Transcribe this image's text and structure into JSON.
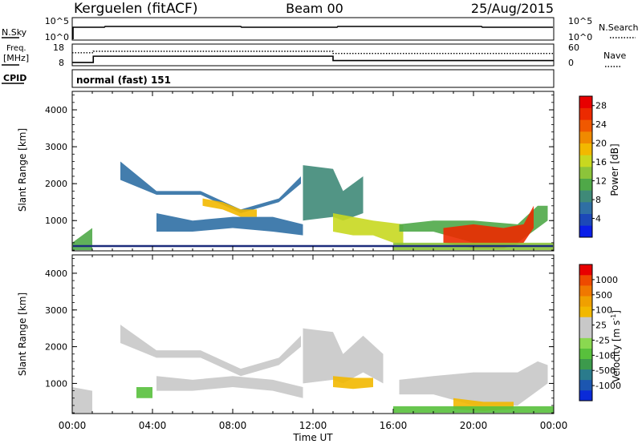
{
  "header": {
    "site": "Kerguelen (fitACF)",
    "beam": "Beam 00",
    "date": "25/Aug/2015"
  },
  "status_panels": {
    "nsky": {
      "label": "N.Sky",
      "ticks": [
        "10^5",
        "10^0"
      ]
    },
    "nsearch": {
      "label": "N.Search",
      "ticks": [
        "10^5",
        "10^0"
      ]
    },
    "freq": {
      "label_top": "Freq.",
      "label_unit": "[MHz]",
      "ticks": [
        "18",
        "8"
      ]
    },
    "nave": {
      "label": "Nave",
      "ticks": [
        "60",
        "0"
      ]
    },
    "cpid": {
      "label": "CPID",
      "value": "normal (fast) 151"
    },
    "freq_series": {
      "x_hours": [
        0,
        1.05,
        1.05,
        13.0,
        13.0,
        24
      ],
      "y_mhz": [
        9.5,
        9.5,
        12.4,
        12.4,
        10.4,
        10.4
      ]
    },
    "nave_series": {
      "x_hours": [
        0,
        1.05,
        1.05,
        13.0,
        13.0,
        24
      ],
      "y": [
        36,
        36,
        40,
        40,
        34,
        34
      ]
    }
  },
  "chart_data": [
    {
      "type": "heatmap",
      "name": "power",
      "xlabel": "",
      "ylabel": "Slant Range [km]",
      "x_unit": "hours UT",
      "xlim": [
        0,
        24
      ],
      "ylim": [
        180,
        4500
      ],
      "yticks": [
        "1000",
        "2000",
        "3000",
        "4000"
      ],
      "colorbar": {
        "label": "Power [dB]",
        "ticks": [
          "4",
          "8",
          "12",
          "16",
          "20",
          "24",
          "28"
        ],
        "range": [
          0,
          30
        ],
        "colors": [
          "#0a1ee8",
          "#1c48b8",
          "#2f6fa4",
          "#3f8a78",
          "#4fa848",
          "#8cc43a",
          "#c8d820",
          "#f2b800",
          "#f08a00",
          "#f05800",
          "#ec2a00",
          "#e80000"
        ]
      },
      "bands": [
        {
          "x": [
            0.0,
            1.0
          ],
          "y0": [
            400,
            800
          ],
          "y1": [
            200,
            200
          ],
          "v": 10
        },
        {
          "x": [
            2.4,
            4.2,
            6.4,
            8.4,
            10.3,
            11.4
          ],
          "y0": [
            2600,
            1800,
            1800,
            1300,
            1600,
            2200
          ],
          "y1": [
            2100,
            1700,
            1700,
            1200,
            1500,
            2000
          ],
          "v": 7
        },
        {
          "x": [
            6.5,
            7.5,
            8.4,
            9.2
          ],
          "y0": [
            1600,
            1500,
            1300,
            1300
          ],
          "y1": [
            1400,
            1300,
            1100,
            1100
          ],
          "v": 19
        },
        {
          "x": [
            4.2,
            6.0,
            8.0,
            10.0,
            11.5
          ],
          "y0": [
            1200,
            1000,
            1100,
            1100,
            900
          ],
          "y1": [
            700,
            700,
            800,
            700,
            600
          ],
          "v": 6
        },
        {
          "x": [
            11.5,
            13.0,
            13.5,
            14.5
          ],
          "y0": [
            2500,
            2400,
            1800,
            2200
          ],
          "y1": [
            1000,
            1100,
            1000,
            1200
          ],
          "v": 9
        },
        {
          "x": [
            13.0,
            14.0,
            15.0,
            16.5
          ],
          "y0": [
            1200,
            1100,
            1000,
            900
          ],
          "y1": [
            700,
            600,
            600,
            300
          ],
          "v": 17
        },
        {
          "x": [
            16.3,
            18.0,
            20.0,
            22.2,
            23.2,
            23.7
          ],
          "y0": [
            900,
            1000,
            1000,
            900,
            1400,
            1400
          ],
          "y1": [
            700,
            700,
            400,
            400,
            800,
            1000
          ],
          "v": 10
        },
        {
          "x": [
            18.5,
            20.0,
            21.5,
            22.5,
            23.0
          ],
          "y0": [
            800,
            900,
            800,
            900,
            1400
          ],
          "y1": [
            400,
            250,
            250,
            400,
            800
          ],
          "v": 27
        },
        {
          "x": [
            16.0,
            24.0
          ],
          "y0": [
            400,
            400
          ],
          "y1": [
            200,
            200
          ],
          "v": 14
        }
      ]
    },
    {
      "type": "heatmap",
      "name": "velocity",
      "xlabel": "Time UT",
      "ylabel": "Slant Range [km]",
      "x_unit": "hours UT",
      "xlim": [
        0,
        24
      ],
      "xticks": [
        "00:00",
        "04:00",
        "08:00",
        "12:00",
        "16:00",
        "20:00",
        "00:00"
      ],
      "ylim": [
        180,
        4500
      ],
      "yticks": [
        "1000",
        "2000",
        "3000",
        "4000"
      ],
      "colorbar": {
        "label": "Velocity [m s",
        "label_sup": "-1",
        "label_end": "]",
        "ticks": [
          "1000",
          "500",
          "100",
          "25",
          "-25",
          "-100",
          "-500",
          "-1000"
        ],
        "colors": [
          "#0a2ad8",
          "#1c56b0",
          "#2a7b8c",
          "#3c9a4c",
          "#58c03c",
          "#8ad850",
          "#c8c8c8",
          "#c8c8c8",
          "#f2b800",
          "#f0a000",
          "#f07800",
          "#ee4a00",
          "#e80000"
        ]
      },
      "bands": [
        {
          "x": [
            0.0,
            1.0
          ],
          "y0": [
            900,
            800
          ],
          "y1": [
            200,
            200
          ],
          "v": "#c8c8c8"
        },
        {
          "x": [
            2.4,
            4.2,
            6.4,
            8.4,
            10.3,
            11.4
          ],
          "y0": [
            2600,
            1900,
            1900,
            1400,
            1700,
            2300
          ],
          "y1": [
            2100,
            1700,
            1700,
            1200,
            1500,
            2000
          ],
          "v": "#c8c8c8"
        },
        {
          "x": [
            4.2,
            6.0,
            8.0,
            10.0,
            11.5
          ],
          "y0": [
            1200,
            1100,
            1200,
            1100,
            900
          ],
          "y1": [
            800,
            800,
            900,
            800,
            600
          ],
          "v": "#c8c8c8"
        },
        {
          "x": [
            11.5,
            13.0,
            13.5,
            14.5,
            15.5
          ],
          "y0": [
            2500,
            2400,
            1800,
            2300,
            1800
          ],
          "y1": [
            1000,
            1100,
            1000,
            1300,
            1000
          ],
          "v": "#c8c8c8"
        },
        {
          "x": [
            13.0,
            14.0,
            15.0
          ],
          "y0": [
            1200,
            1150,
            1150
          ],
          "y1": [
            900,
            850,
            900
          ],
          "v": "#f2b800"
        },
        {
          "x": [
            16.3,
            18.0,
            20.0,
            22.2,
            23.2,
            23.7
          ],
          "y0": [
            1100,
            1200,
            1300,
            1300,
            1600,
            1500
          ],
          "y1": [
            700,
            700,
            400,
            400,
            800,
            1000
          ],
          "v": "#c8c8c8"
        },
        {
          "x": [
            19.0,
            20.5,
            22.0
          ],
          "y0": [
            600,
            500,
            500
          ],
          "y1": [
            300,
            250,
            300
          ],
          "v": "#f2b800"
        },
        {
          "x": [
            16.0,
            24.0
          ],
          "y0": [
            380,
            380
          ],
          "y1": [
            200,
            200
          ],
          "v": "#58c03c"
        },
        {
          "x": [
            3.2,
            4.0
          ],
          "y0": [
            900,
            900
          ],
          "y1": [
            600,
            600
          ],
          "v": "#58c03c"
        }
      ]
    }
  ]
}
